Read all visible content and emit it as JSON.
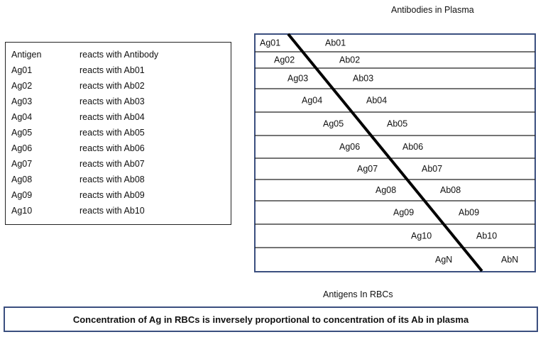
{
  "titles": {
    "top": "Antibodies in Plasma",
    "bottom": "Antigens In RBCs"
  },
  "legend": {
    "header": [
      "Antigen",
      "reacts with Antibody"
    ],
    "rows": [
      [
        "Ag01",
        "reacts with Ab01"
      ],
      [
        "Ag02",
        "reacts with Ab02"
      ],
      [
        "Ag03",
        "reacts with Ab03"
      ],
      [
        "Ag04",
        "reacts with Ab04"
      ],
      [
        "Ag05",
        "reacts with Ab05"
      ],
      [
        "Ag06",
        "reacts with Ab06"
      ],
      [
        "Ag07",
        "reacts with Ab07"
      ],
      [
        "Ag08",
        "reacts with Ab08"
      ],
      [
        "Ag09",
        "reacts with Ab09"
      ],
      [
        "Ag10",
        "reacts with Ab10"
      ]
    ]
  },
  "bands": [
    {
      "ag": "Ag01",
      "ab": "Ab01"
    },
    {
      "ag": "Ag02",
      "ab": "Ab02"
    },
    {
      "ag": "Ag03",
      "ab": "Ab03"
    },
    {
      "ag": "Ag04",
      "ab": "Ab04"
    },
    {
      "ag": "Ag05",
      "ab": "Ab05"
    },
    {
      "ag": "Ag06",
      "ab": "Ab06"
    },
    {
      "ag": "Ag07",
      "ab": "Ab07"
    },
    {
      "ag": "Ag08",
      "ab": "Ab08"
    },
    {
      "ag": "Ag09",
      "ab": "Ab09"
    },
    {
      "ag": "Ag10",
      "ab": "Ab10"
    },
    {
      "ag": "AgN",
      "ab": "AbN"
    }
  ],
  "conclusion": "Concentration of Ag in RBCs is inversely proportional to concentration of its Ab in plasma",
  "colors": {
    "box_border": "#3b4f7f",
    "line": "#000000"
  }
}
